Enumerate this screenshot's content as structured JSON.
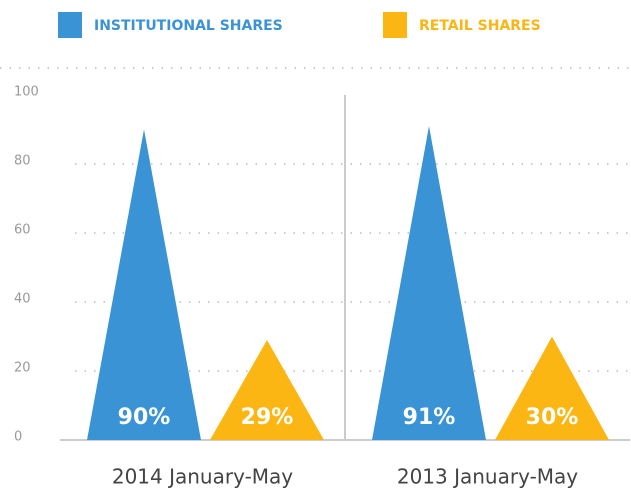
{
  "chart_data": {
    "type": "triangle-bar",
    "categories": [
      "2014 January-May",
      "2013 January-May"
    ],
    "series": [
      {
        "name": "INSTITUTIONAL SHARES",
        "color": "#3a93d4",
        "values": [
          90,
          91
        ],
        "value_labels": [
          "90%",
          "91%"
        ]
      },
      {
        "name": "RETAIL SHARES",
        "color": "#fbb614",
        "values": [
          29,
          30
        ],
        "value_labels": [
          "29%",
          "30%"
        ]
      }
    ],
    "ylim": [
      0,
      100
    ],
    "yticks": [
      0,
      20,
      40,
      60,
      80,
      100
    ],
    "grid": true
  }
}
